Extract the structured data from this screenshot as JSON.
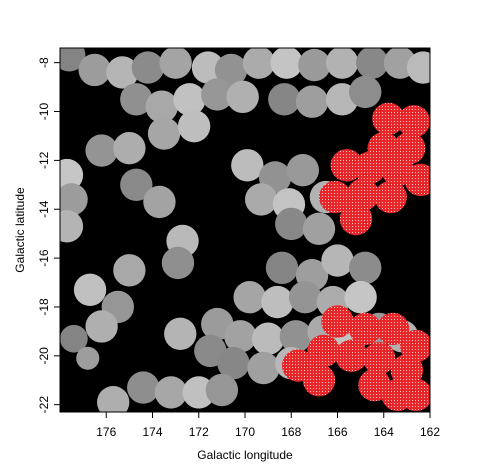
{
  "chart_data": {
    "type": "heatmap",
    "title": "",
    "xlabel": "Galactic longitude",
    "ylabel": "Galactic latitude",
    "xlim": [
      178.0,
      162.0
    ],
    "ylim": [
      -22.3,
      -7.4
    ],
    "x_ticks": [
      176,
      174,
      172,
      170,
      168,
      166,
      164,
      162
    ],
    "y_ticks": [
      -8,
      -10,
      -12,
      -14,
      -16,
      -18,
      -20,
      -22
    ],
    "x_tick_labels": [
      "176",
      "174",
      "172",
      "170",
      "168",
      "166",
      "164",
      "162"
    ],
    "y_tick_labels": [
      "-8",
      "-10",
      "-12",
      "-14",
      "-16",
      "-18",
      "-20",
      "-22"
    ],
    "grid": false,
    "legend": "none",
    "background_color": "#000000",
    "grayscale_range": [
      "#505050",
      "#e4e4e4"
    ],
    "highlight_color": "#e8262a",
    "coverage_fields": [
      {
        "l": 177.6,
        "b": -7.7,
        "r": 0.7
      },
      {
        "l": 176.5,
        "b": -8.3,
        "r": 0.7
      },
      {
        "l": 175.3,
        "b": -8.4,
        "r": 0.7
      },
      {
        "l": 174.2,
        "b": -8.2,
        "r": 0.7
      },
      {
        "l": 173.0,
        "b": -8.0,
        "r": 0.7
      },
      {
        "l": 171.6,
        "b": -8.2,
        "r": 0.7
      },
      {
        "l": 170.6,
        "b": -8.3,
        "r": 0.7
      },
      {
        "l": 169.4,
        "b": -8.0,
        "r": 0.7
      },
      {
        "l": 168.2,
        "b": -8.0,
        "r": 0.7
      },
      {
        "l": 167.0,
        "b": -8.1,
        "r": 0.7
      },
      {
        "l": 165.8,
        "b": -8.0,
        "r": 0.7
      },
      {
        "l": 164.5,
        "b": -8.0,
        "r": 0.7
      },
      {
        "l": 163.3,
        "b": -8.0,
        "r": 0.7
      },
      {
        "l": 162.3,
        "b": -8.2,
        "r": 0.7
      },
      {
        "l": 174.7,
        "b": -9.5,
        "r": 0.7
      },
      {
        "l": 173.6,
        "b": -9.8,
        "r": 0.7
      },
      {
        "l": 172.4,
        "b": -9.5,
        "r": 0.7
      },
      {
        "l": 171.2,
        "b": -9.3,
        "r": 0.7
      },
      {
        "l": 170.1,
        "b": -9.4,
        "r": 0.7
      },
      {
        "l": 168.3,
        "b": -9.5,
        "r": 0.7
      },
      {
        "l": 167.1,
        "b": -9.6,
        "r": 0.7
      },
      {
        "l": 165.8,
        "b": -9.5,
        "r": 0.7
      },
      {
        "l": 164.8,
        "b": -9.2,
        "r": 0.7
      },
      {
        "l": 173.5,
        "b": -10.9,
        "r": 0.7
      },
      {
        "l": 172.2,
        "b": -10.6,
        "r": 0.7
      },
      {
        "l": 176.2,
        "b": -11.6,
        "r": 0.7
      },
      {
        "l": 175.0,
        "b": -11.5,
        "r": 0.7
      },
      {
        "l": 177.7,
        "b": -12.6,
        "r": 0.7
      },
      {
        "l": 177.5,
        "b": -13.6,
        "r": 0.7
      },
      {
        "l": 177.7,
        "b": -14.7,
        "r": 0.7
      },
      {
        "l": 174.7,
        "b": -13.0,
        "r": 0.7
      },
      {
        "l": 173.7,
        "b": -13.7,
        "r": 0.7
      },
      {
        "l": 169.9,
        "b": -12.2,
        "r": 0.7
      },
      {
        "l": 168.7,
        "b": -12.7,
        "r": 0.7
      },
      {
        "l": 169.3,
        "b": -13.6,
        "r": 0.7
      },
      {
        "l": 168.1,
        "b": -13.8,
        "r": 0.7
      },
      {
        "l": 167.5,
        "b": -12.4,
        "r": 0.7
      },
      {
        "l": 166.5,
        "b": -13.5,
        "r": 0.7
      },
      {
        "l": 168.0,
        "b": -14.6,
        "r": 0.7
      },
      {
        "l": 166.8,
        "b": -14.8,
        "r": 0.7
      },
      {
        "l": 172.7,
        "b": -15.3,
        "r": 0.7
      },
      {
        "l": 172.9,
        "b": -16.2,
        "r": 0.7
      },
      {
        "l": 175.0,
        "b": -16.5,
        "r": 0.7
      },
      {
        "l": 176.7,
        "b": -17.3,
        "r": 0.7
      },
      {
        "l": 175.5,
        "b": -18.0,
        "r": 0.7
      },
      {
        "l": 176.2,
        "b": -18.8,
        "r": 0.7
      },
      {
        "l": 168.4,
        "b": -16.4,
        "r": 0.7
      },
      {
        "l": 167.1,
        "b": -16.7,
        "r": 0.7
      },
      {
        "l": 166.0,
        "b": -16.1,
        "r": 0.7
      },
      {
        "l": 164.8,
        "b": -16.4,
        "r": 0.7
      },
      {
        "l": 169.8,
        "b": -17.6,
        "r": 0.7
      },
      {
        "l": 168.6,
        "b": -17.8,
        "r": 0.7
      },
      {
        "l": 167.4,
        "b": -17.6,
        "r": 0.7
      },
      {
        "l": 166.2,
        "b": -17.8,
        "r": 0.7
      },
      {
        "l": 165.0,
        "b": -17.6,
        "r": 0.7
      },
      {
        "l": 171.2,
        "b": -18.7,
        "r": 0.7
      },
      {
        "l": 172.8,
        "b": -19.1,
        "r": 0.7
      },
      {
        "l": 171.5,
        "b": -19.8,
        "r": 0.7
      },
      {
        "l": 170.2,
        "b": -19.2,
        "r": 0.7
      },
      {
        "l": 169.0,
        "b": -19.3,
        "r": 0.7
      },
      {
        "l": 167.8,
        "b": -19.2,
        "r": 0.7
      },
      {
        "l": 166.6,
        "b": -19.0,
        "r": 0.7
      },
      {
        "l": 165.4,
        "b": -19.2,
        "r": 0.7
      },
      {
        "l": 164.2,
        "b": -18.9,
        "r": 0.7
      },
      {
        "l": 163.2,
        "b": -19.2,
        "r": 0.7
      },
      {
        "l": 170.5,
        "b": -20.3,
        "r": 0.7
      },
      {
        "l": 169.2,
        "b": -20.5,
        "r": 0.7
      },
      {
        "l": 168.0,
        "b": -20.3,
        "r": 0.7
      },
      {
        "l": 174.4,
        "b": -21.3,
        "r": 0.7
      },
      {
        "l": 173.2,
        "b": -21.5,
        "r": 0.7
      },
      {
        "l": 172.0,
        "b": -21.5,
        "r": 0.7
      },
      {
        "l": 171.0,
        "b": -21.4,
        "r": 0.7
      },
      {
        "l": 175.7,
        "b": -21.9,
        "r": 0.7
      },
      {
        "l": 177.4,
        "b": -19.3,
        "r": 0.6
      },
      {
        "l": 176.8,
        "b": -20.1,
        "r": 0.5
      }
    ],
    "highlighted_fields": [
      {
        "l": 163.8,
        "b": -10.3,
        "r": 0.7
      },
      {
        "l": 162.7,
        "b": -10.4,
        "r": 0.7
      },
      {
        "l": 164.0,
        "b": -11.5,
        "r": 0.7
      },
      {
        "l": 162.9,
        "b": -11.5,
        "r": 0.7
      },
      {
        "l": 165.6,
        "b": -12.2,
        "r": 0.7
      },
      {
        "l": 164.6,
        "b": -12.3,
        "r": 0.7
      },
      {
        "l": 163.4,
        "b": -12.4,
        "r": 0.7
      },
      {
        "l": 162.4,
        "b": -12.8,
        "r": 0.7
      },
      {
        "l": 166.1,
        "b": -13.5,
        "r": 0.7
      },
      {
        "l": 164.9,
        "b": -13.4,
        "r": 0.7
      },
      {
        "l": 163.7,
        "b": -13.5,
        "r": 0.7
      },
      {
        "l": 165.2,
        "b": -14.4,
        "r": 0.7
      },
      {
        "l": 166.0,
        "b": -18.6,
        "r": 0.7
      },
      {
        "l": 164.8,
        "b": -18.9,
        "r": 0.7
      },
      {
        "l": 163.6,
        "b": -18.9,
        "r": 0.7
      },
      {
        "l": 162.6,
        "b": -19.6,
        "r": 0.7
      },
      {
        "l": 166.6,
        "b": -19.8,
        "r": 0.7
      },
      {
        "l": 165.4,
        "b": -20.0,
        "r": 0.7
      },
      {
        "l": 164.2,
        "b": -20.1,
        "r": 0.7
      },
      {
        "l": 163.0,
        "b": -20.6,
        "r": 0.7
      },
      {
        "l": 167.7,
        "b": -20.4,
        "r": 0.7
      },
      {
        "l": 166.8,
        "b": -21.0,
        "r": 0.7
      },
      {
        "l": 164.4,
        "b": -21.2,
        "r": 0.7
      },
      {
        "l": 163.4,
        "b": -21.6,
        "r": 0.7
      },
      {
        "l": 162.6,
        "b": -21.6,
        "r": 0.7
      }
    ]
  }
}
